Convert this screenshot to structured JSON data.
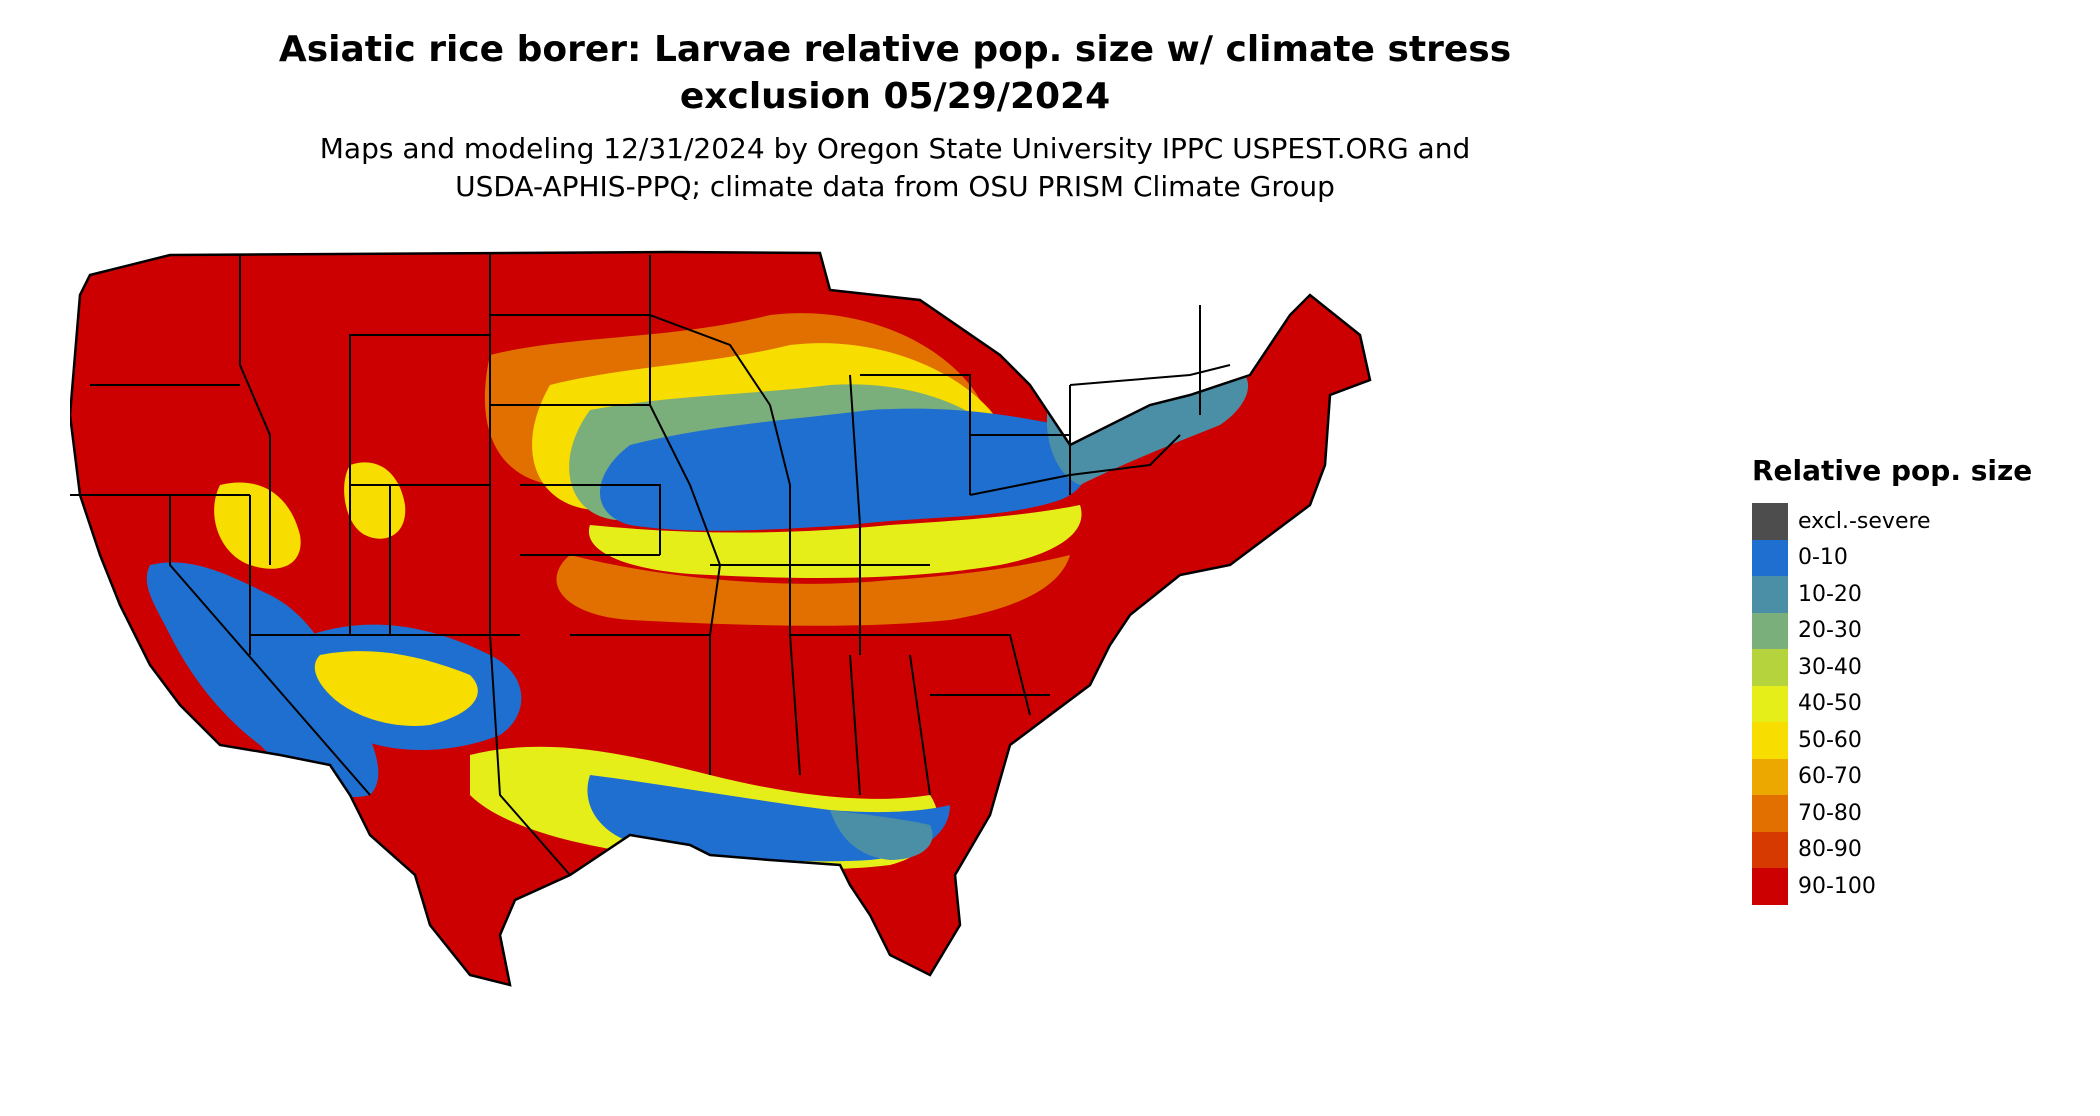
{
  "title_line1": "Asiatic rice borer: Larvae relative pop. size w/ climate stress",
  "title_line2": "exclusion 05/29/2024",
  "subtitle_line1": "Maps and modeling 12/31/2024 by Oregon State University IPPC USPEST.ORG and",
  "subtitle_line2": "USDA-APHIS-PPQ; climate data from OSU PRISM Climate Group",
  "legend": {
    "title": "Relative pop. size",
    "items": [
      {
        "label": "excl.-severe",
        "color": "#4d4d4d"
      },
      {
        "label": "0-10",
        "color": "#1f6fd1"
      },
      {
        "label": "10-20",
        "color": "#4a8fa6"
      },
      {
        "label": "20-30",
        "color": "#7aae7a"
      },
      {
        "label": "30-40",
        "color": "#b5d33d"
      },
      {
        "label": "40-50",
        "color": "#e6ee1a"
      },
      {
        "label": "50-60",
        "color": "#f7dd00"
      },
      {
        "label": "60-70",
        "color": "#eda800"
      },
      {
        "label": "70-80",
        "color": "#e27000"
      },
      {
        "label": "80-90",
        "color": "#d63a00"
      },
      {
        "label": "90-100",
        "color": "#cc0000"
      }
    ]
  }
}
